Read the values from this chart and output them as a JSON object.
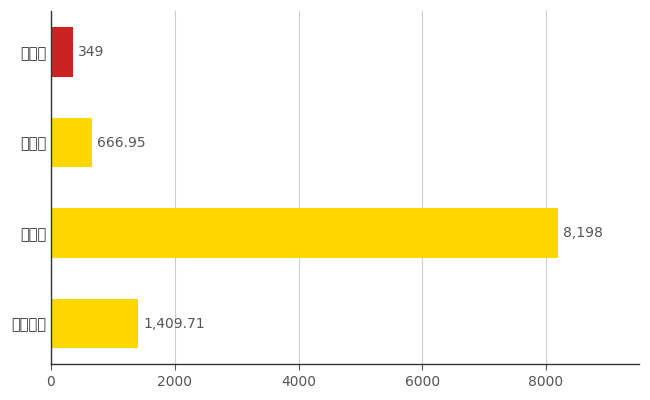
{
  "categories": [
    "全国平均",
    "県最大",
    "県平均",
    "坂城町"
  ],
  "values": [
    1409.71,
    8198,
    666.95,
    349
  ],
  "bar_colors": [
    "#FFD700",
    "#FFD700",
    "#FFD700",
    "#CC2222"
  ],
  "labels": [
    "1,409.71",
    "8,198",
    "666.95",
    "349"
  ],
  "xlim": [
    0,
    9500
  ],
  "xticks": [
    0,
    2000,
    4000,
    6000,
    8000
  ],
  "xtick_labels": [
    "0",
    "2000",
    "4000",
    "6000",
    "8000"
  ],
  "bar_height": 0.55,
  "background_color": "#FFFFFF",
  "grid_color": "#CCCCCC",
  "label_fontsize": 10.5,
  "tick_fontsize": 10,
  "value_label_fontsize": 10,
  "figsize": [
    6.5,
    4.0
  ],
  "dpi": 100
}
